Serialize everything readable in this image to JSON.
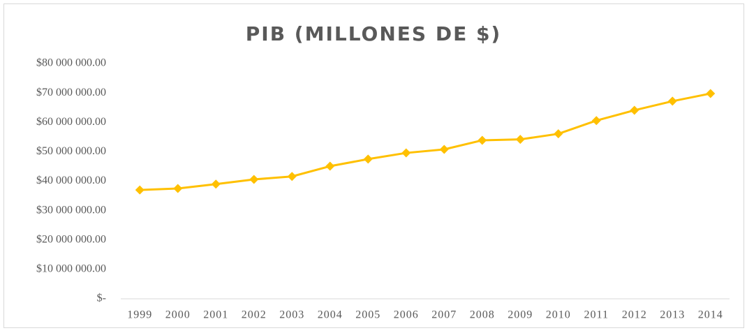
{
  "chart_data": {
    "type": "line",
    "title": "PIB (MILLONES DE $)",
    "categories": [
      "1999",
      "2000",
      "2001",
      "2002",
      "2003",
      "2004",
      "2005",
      "2006",
      "2007",
      "2008",
      "2009",
      "2010",
      "2011",
      "2012",
      "2013",
      "2014"
    ],
    "series": [
      {
        "color": "#ffc000",
        "values": [
          37000000,
          37500000,
          39000000,
          40600000,
          41600000,
          45100000,
          47500000,
          49600000,
          50800000,
          53900000,
          54200000,
          56100000,
          60600000,
          64100000,
          67200000,
          69800000
        ]
      }
    ],
    "ylim": [
      0,
      80000000
    ],
    "yticks": [
      {
        "value": 0,
        "label": "$-"
      },
      {
        "value": 10000000,
        "label": "$10 000 000.00"
      },
      {
        "value": 20000000,
        "label": "$20 000 000.00"
      },
      {
        "value": 30000000,
        "label": "$30 000 000.00"
      },
      {
        "value": 40000000,
        "label": "$40 000 000.00"
      },
      {
        "value": 50000000,
        "label": "$50 000 000.00"
      },
      {
        "value": 60000000,
        "label": "$60 000 000.00"
      },
      {
        "value": 70000000,
        "label": "$70 000 000.00"
      },
      {
        "value": 80000000,
        "label": "$80 000 000.00"
      }
    ],
    "grid": false
  }
}
